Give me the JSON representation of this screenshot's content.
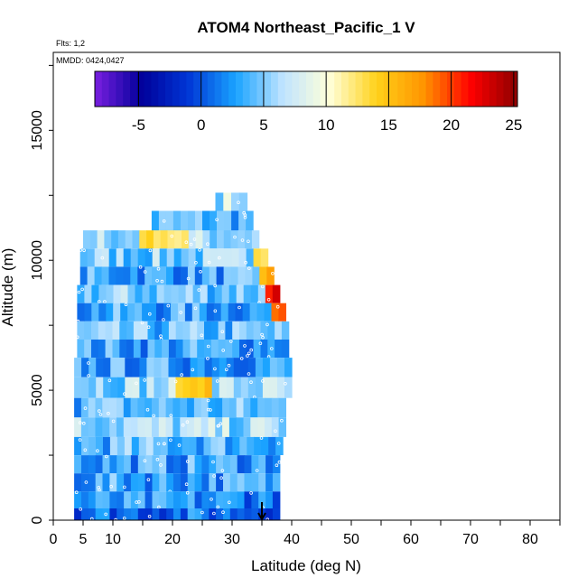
{
  "chart_data": {
    "type": "heatmap",
    "title": "ATOM4 Northeast_Pacific_1 V",
    "flights_label": "Flts: 1,2",
    "dates_label": "MMDD: 0424,0427",
    "xlabel": "Latitude (deg N)",
    "ylabel": "Altitude (m)",
    "xlim": [
      0,
      85
    ],
    "ylim": [
      0,
      18000
    ],
    "x_ticks": [
      "0",
      "5",
      "10",
      "20",
      "30",
      "40",
      "50",
      "60",
      "70",
      "80"
    ],
    "y_ticks": [
      "0",
      "5000",
      "10000",
      "15000"
    ],
    "colorbar": {
      "range": [
        -8.5,
        25.3
      ],
      "tick_labels": [
        "-5",
        "0",
        "5",
        "10",
        "15",
        "20",
        "25"
      ],
      "colors": [
        "#7a1fe0",
        "#00009a",
        "#0037d6",
        "#1aa3ff",
        "#bfe4ff",
        "#ffffd9",
        "#ffd21a",
        "#ff9400",
        "#ff0000",
        "#8b0000"
      ]
    },
    "arrow_marker": {
      "latitude": 35,
      "altitude": 0
    },
    "bands": [
      {
        "alt": [
          11800,
          12600
        ],
        "lat": [
          27.2,
          32.5
        ],
        "mean": 7
      },
      {
        "alt": [
          11100,
          11900
        ],
        "lat": [
          16.5,
          33.5
        ],
        "mean": 4
      },
      {
        "alt": [
          10450,
          11150
        ],
        "lat": [
          5,
          34.5
        ],
        "mean": 6
      },
      {
        "alt": [
          9750,
          10450
        ],
        "lat": [
          4.5,
          36
        ],
        "mean": 5
      },
      {
        "alt": [
          9050,
          9750
        ],
        "lat": [
          4.5,
          37
        ],
        "mean": 3
      },
      {
        "alt": [
          8350,
          9050
        ],
        "lat": [
          4,
          38
        ],
        "mean": 5
      },
      {
        "alt": [
          7650,
          8350
        ],
        "lat": [
          4,
          39
        ],
        "mean": 3
      },
      {
        "alt": [
          6950,
          7650
        ],
        "lat": [
          4,
          39.5
        ],
        "mean": 4
      },
      {
        "alt": [
          6250,
          6950
        ],
        "lat": [
          4,
          39.5
        ],
        "mean": 3
      },
      {
        "alt": [
          5500,
          6250
        ],
        "lat": [
          3.5,
          40
        ],
        "mean": 3
      },
      {
        "alt": [
          4700,
          5500
        ],
        "lat": [
          3.5,
          40
        ],
        "mean": 6
      },
      {
        "alt": [
          3950,
          4700
        ],
        "lat": [
          3.5,
          39
        ],
        "mean": 4
      },
      {
        "alt": [
          3200,
          3950
        ],
        "lat": [
          3.5,
          39
        ],
        "mean": 6
      },
      {
        "alt": [
          2500,
          3200
        ],
        "lat": [
          3.5,
          38.5
        ],
        "mean": 4
      },
      {
        "alt": [
          1800,
          2500
        ],
        "lat": [
          3.5,
          38
        ],
        "mean": 3
      },
      {
        "alt": [
          1100,
          1800
        ],
        "lat": [
          3.5,
          38
        ],
        "mean": 3
      },
      {
        "alt": [
          450,
          1100
        ],
        "lat": [
          3.5,
          38
        ],
        "mean": 2
      },
      {
        "alt": [
          0,
          450
        ],
        "lat": [
          3.5,
          38
        ],
        "mean": 1
      }
    ],
    "highlights": [
      {
        "alt": [
          10450,
          11150
        ],
        "lat": [
          14,
          23
        ],
        "value": 13
      },
      {
        "alt": [
          4700,
          5500
        ],
        "lat": [
          20,
          27
        ],
        "value": 15
      },
      {
        "alt": [
          9750,
          10450
        ],
        "lat": [
          33,
          36
        ],
        "value": 14
      },
      {
        "alt": [
          8350,
          9050
        ],
        "lat": [
          36,
          38
        ],
        "value": 22
      },
      {
        "alt": [
          7650,
          8350
        ],
        "lat": [
          36.5,
          39
        ],
        "value": 20
      },
      {
        "alt": [
          9050,
          9750
        ],
        "lat": [
          34.5,
          37
        ],
        "value": 16
      }
    ]
  }
}
